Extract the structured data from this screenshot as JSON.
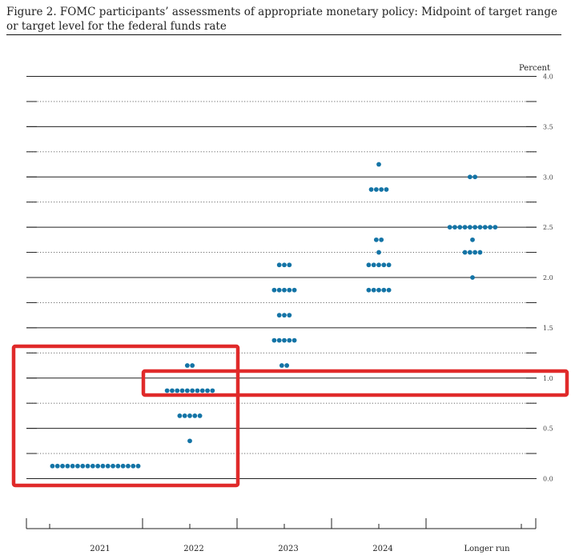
{
  "figure": {
    "caption": "Figure 2.  FOMC participants’ assessments of appropriate monetary policy:  Midpoint of target range or target level for the federal funds rate"
  },
  "chart_data": {
    "type": "scatter",
    "style": "dot plot",
    "ylabel": "Percent",
    "ylim": [
      0,
      4
    ],
    "yticks": [
      "0.0",
      "0.5",
      "1.0",
      "1.5",
      "2.0",
      "2.5",
      "3.0",
      "3.5",
      "4.0"
    ],
    "grid": "solid lines at whole and half percents, dotted lines at 0.125 and 0.375 in between",
    "categories": [
      "2021",
      "2022",
      "2023",
      "2024",
      "Longer run"
    ],
    "dot_color": "#1474a6",
    "columns": [
      {
        "category": "2021",
        "dots": [
          {
            "rate": 0.125,
            "count": 18
          }
        ]
      },
      {
        "category": "2022",
        "dots": [
          {
            "rate": 0.375,
            "count": 1
          },
          {
            "rate": 0.625,
            "count": 5
          },
          {
            "rate": 0.875,
            "count": 10
          },
          {
            "rate": 1.125,
            "count": 2
          }
        ]
      },
      {
        "category": "2023",
        "dots": [
          {
            "rate": 1.125,
            "count": 2
          },
          {
            "rate": 1.375,
            "count": 5
          },
          {
            "rate": 1.625,
            "count": 3
          },
          {
            "rate": 1.875,
            "count": 5
          },
          {
            "rate": 2.125,
            "count": 3
          }
        ]
      },
      {
        "category": "2024",
        "dots": [
          {
            "rate": 1.875,
            "count": 5
          },
          {
            "rate": 2.125,
            "count": 5
          },
          {
            "rate": 2.25,
            "count": 1
          },
          {
            "rate": 2.375,
            "count": 2
          },
          {
            "rate": 2.875,
            "count": 4
          },
          {
            "rate": 3.125,
            "count": 1
          }
        ]
      },
      {
        "category": "Longer run",
        "dots": [
          {
            "rate": 2.0,
            "count": 1
          },
          {
            "rate": 2.25,
            "count": 4
          },
          {
            "rate": 2.375,
            "count": 1
          },
          {
            "rate": 2.5,
            "count": 10
          },
          {
            "rate": 3.0,
            "count": 2
          }
        ]
      }
    ]
  },
  "annotations": {
    "highlight_color": "#e02a2a"
  }
}
